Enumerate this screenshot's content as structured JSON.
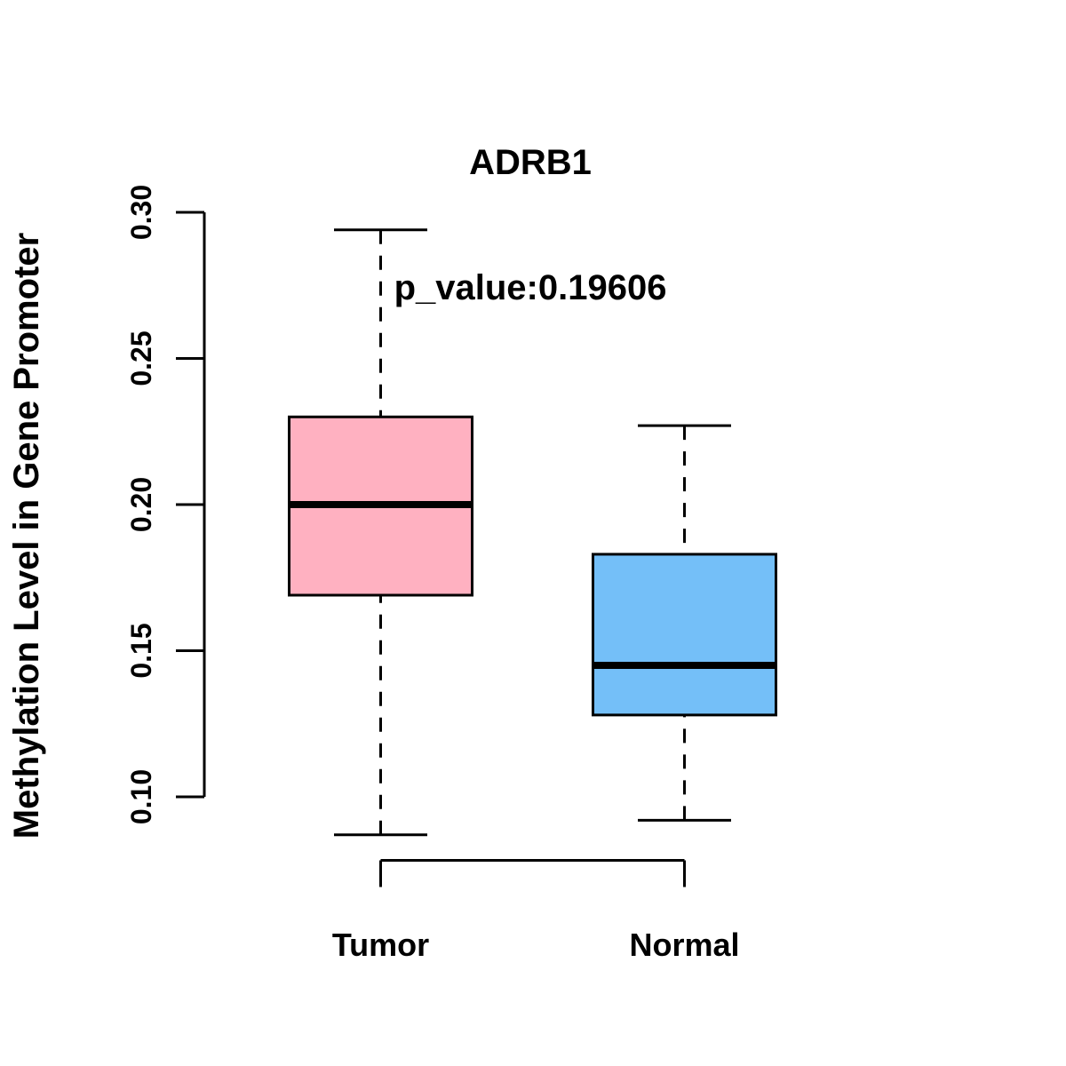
{
  "chart_data": {
    "type": "boxplot",
    "title": "ADRB1",
    "subtitle": "p_value:0.19606",
    "ylabel": "Methylation Level in Gene Promoter",
    "xlabel": "",
    "categories": [
      "Tumor",
      "Normal"
    ],
    "ylim": [
      0.1,
      0.3
    ],
    "yticks": [
      0.3,
      0.25,
      0.2,
      0.15,
      0.1
    ],
    "ytick_labels": [
      "0.30",
      "0.25",
      "0.20",
      "0.15",
      "0.10"
    ],
    "grid": false,
    "legend": "none",
    "whisker_style": "dashed",
    "line_color": "#000000",
    "background_color": "#FFFFFF",
    "series": [
      {
        "name": "Tumor",
        "box_color": "#FFB1C1",
        "whisker_low": 0.087,
        "q1": 0.169,
        "median": 0.2,
        "q3": 0.23,
        "whisker_high": 0.294
      },
      {
        "name": "Normal",
        "box_color": "#74BFF8",
        "whisker_low": 0.092,
        "q1": 0.128,
        "median": 0.145,
        "q3": 0.183,
        "whisker_high": 0.227
      }
    ]
  }
}
